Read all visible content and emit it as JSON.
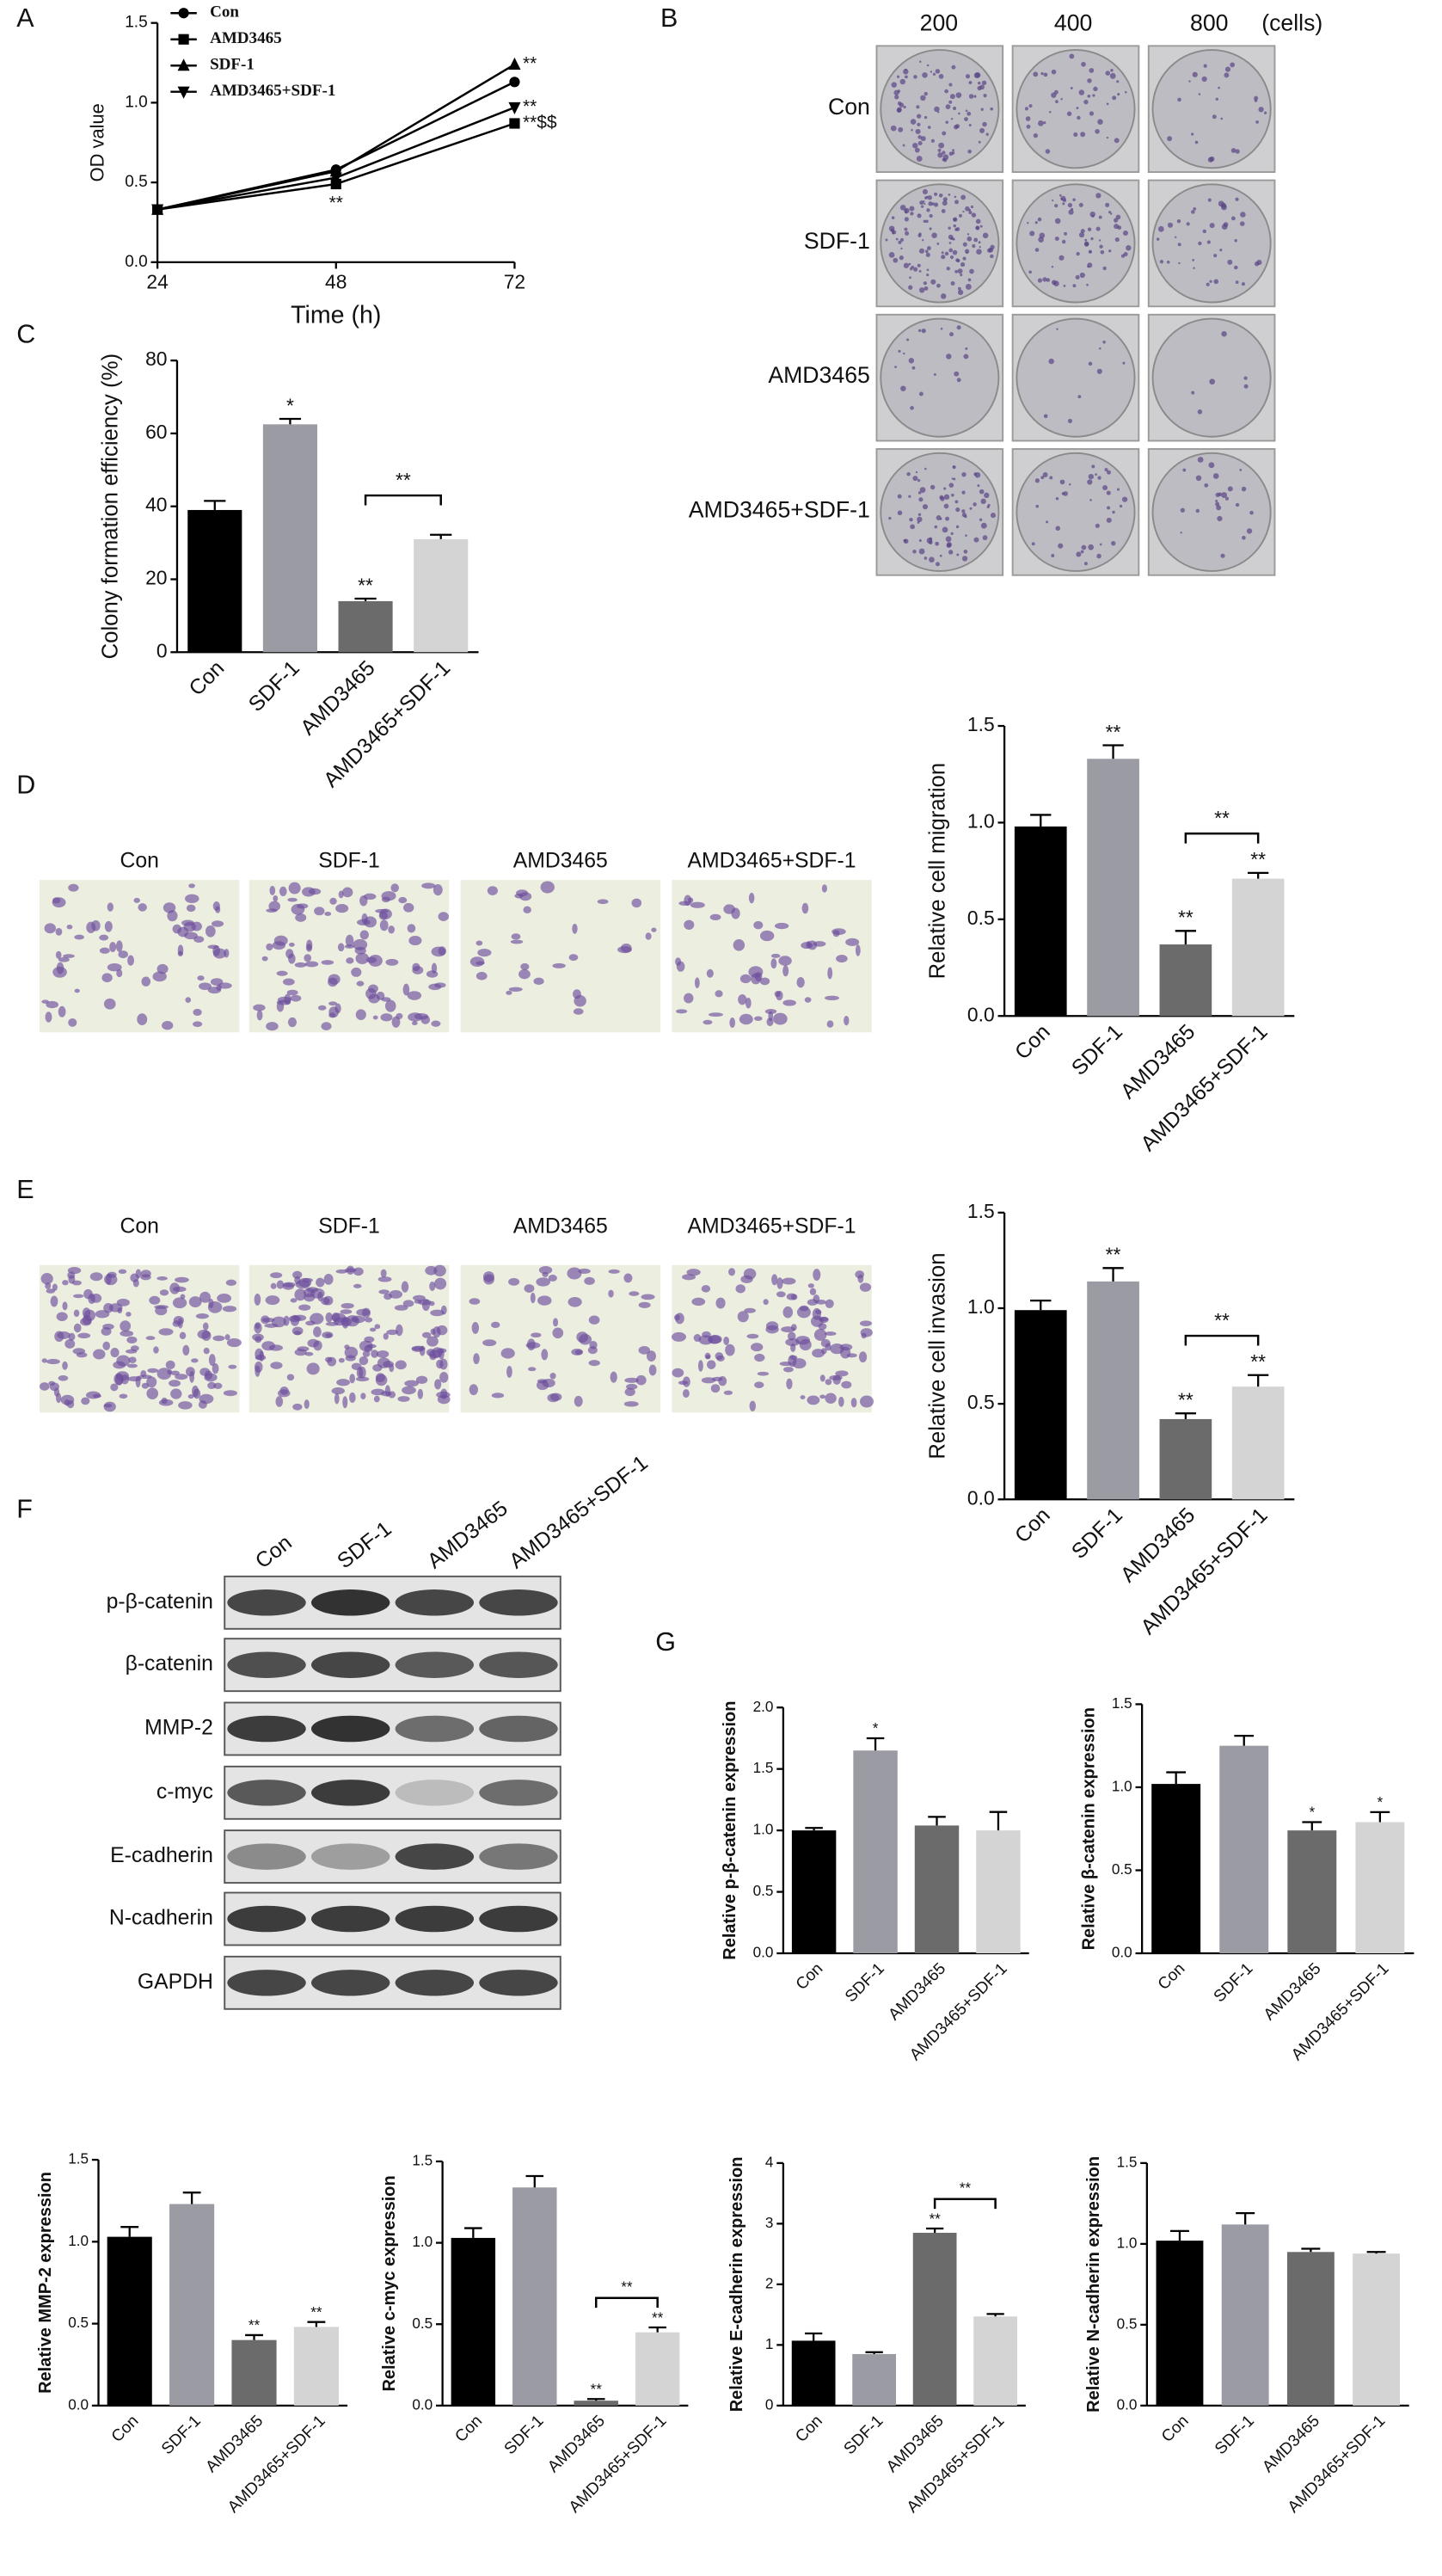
{
  "panel_labels": [
    "A",
    "B",
    "C",
    "D",
    "E",
    "F",
    "G"
  ],
  "colony_assay": {
    "columns": [
      "200",
      "400",
      "800"
    ],
    "unit": "(cells)",
    "rows": [
      "Con",
      "SDF-1",
      "AMD3465",
      "AMD3465+SDF-1"
    ]
  },
  "migration_images": {
    "labels": [
      "Con",
      "SDF-1",
      "AMD3465",
      "AMD3465+SDF-1"
    ]
  },
  "invasion_images": {
    "labels": [
      "Con",
      "SDF-1",
      "AMD3465",
      "AMD3465+SDF-1"
    ]
  },
  "western_blot": {
    "lanes": [
      "Con",
      "SDF-1",
      "AMD3465",
      "AMD3465+SDF-1"
    ],
    "proteins": [
      "p-β-catenin",
      "β-catenin",
      "MMP-2",
      "c-myc",
      "E-cadherin",
      "N-cadherin",
      "GAPDH"
    ]
  },
  "chart_data": [
    {
      "type": "line",
      "xlabel": "Time (h)",
      "ylabel": "OD value",
      "x": [
        24,
        48,
        72
      ],
      "xlim": [
        24,
        72
      ],
      "xticks": [
        24,
        48,
        72
      ],
      "ylim": [
        0,
        1.5
      ],
      "yticks": [
        {
          "value": 0,
          "label": "0.0"
        },
        {
          "value": 0.5,
          "label": "0.5"
        },
        {
          "value": 1,
          "label": "1.0"
        },
        {
          "value": 1.5,
          "label": "1.5"
        }
      ],
      "legend": "upper left",
      "series": [
        {
          "name": "Con",
          "color": "#000000",
          "marker": "circle",
          "values": [
            0.33,
            0.58,
            1.13
          ]
        },
        {
          "name": "AMD3465",
          "color": "#000000",
          "marker": "square",
          "values": [
            0.33,
            0.49,
            0.87
          ],
          "annotations": [
            null,
            "**",
            "**$$"
          ]
        },
        {
          "name": "SDF-1",
          "color": "#000000",
          "marker": "triangle-up",
          "values": [
            0.33,
            0.57,
            1.24
          ],
          "annotations": [
            null,
            null,
            "**"
          ]
        },
        {
          "name": "AMD3465+SDF-1",
          "color": "#000000",
          "marker": "triangle-down",
          "values": [
            0.33,
            0.53,
            0.97
          ],
          "annotations": [
            null,
            null,
            "**"
          ]
        }
      ]
    },
    {
      "type": "bar",
      "ylabel": "Colony formation efficiency (%)",
      "categories": [
        "Con",
        "SDF-1",
        "AMD3465",
        "AMD3465+SDF-1"
      ],
      "values": [
        39,
        62.5,
        14,
        31
      ],
      "errors": [
        2.5,
        1.5,
        0.7,
        1.2
      ],
      "colors": [
        "#000000",
        "#9b9ba3",
        "#6b6b6b",
        "#d4d4d4"
      ],
      "annotations": [
        null,
        "*",
        "**",
        null
      ],
      "bracket_label": "**",
      "ylim": [
        0,
        80
      ],
      "yticks": [
        0,
        20,
        40,
        60,
        80
      ]
    },
    {
      "type": "bar",
      "ylabel": "Relative cell migration",
      "categories": [
        "Con",
        "SDF-1",
        "AMD3465",
        "AMD3465+SDF-1"
      ],
      "values": [
        0.98,
        1.33,
        0.37,
        0.71
      ],
      "errors": [
        0.06,
        0.07,
        0.07,
        0.03
      ],
      "colors": [
        "#000000",
        "#9b9ba3",
        "#6b6b6b",
        "#d4d4d4"
      ],
      "annotations": [
        null,
        "**",
        "**",
        "**"
      ],
      "bracket_label": "**",
      "ylim": [
        0,
        1.5
      ],
      "yticks": [
        {
          "value": 0,
          "label": "0.0"
        },
        {
          "value": 0.5,
          "label": "0.5"
        },
        {
          "value": 1,
          "label": "1.0"
        },
        {
          "value": 1.5,
          "label": "1.5"
        }
      ]
    },
    {
      "type": "bar",
      "ylabel": "Relative cell invasion",
      "categories": [
        "Con",
        "SDF-1",
        "AMD3465",
        "AMD3465+SDF-1"
      ],
      "values": [
        0.99,
        1.14,
        0.42,
        0.59
      ],
      "errors": [
        0.05,
        0.07,
        0.03,
        0.06
      ],
      "colors": [
        "#000000",
        "#9b9ba3",
        "#6b6b6b",
        "#d4d4d4"
      ],
      "annotations": [
        null,
        "**",
        "**",
        "**"
      ],
      "bracket_label": "**",
      "ylim": [
        0,
        1.5
      ],
      "yticks": [
        {
          "value": 0,
          "label": "0.0"
        },
        {
          "value": 0.5,
          "label": "0.5"
        },
        {
          "value": 1,
          "label": "1.0"
        },
        {
          "value": 1.5,
          "label": "1.5"
        }
      ]
    },
    {
      "type": "bar",
      "ylabel": "Relative p-β-catenin expression",
      "categories": [
        "Con",
        "SDF-1",
        "AMD3465",
        "AMD3465+SDF-1"
      ],
      "values": [
        1.0,
        1.65,
        1.04,
        1.0
      ],
      "errors": [
        0.02,
        0.1,
        0.07,
        0.15
      ],
      "colors": [
        "#000000",
        "#9b9ba3",
        "#6b6b6b",
        "#d4d4d4"
      ],
      "annotations": [
        null,
        "*",
        null,
        null
      ],
      "ylim": [
        0,
        2
      ],
      "yticks": [
        {
          "value": 0,
          "label": "0.0"
        },
        {
          "value": 0.5,
          "label": "0.5"
        },
        {
          "value": 1,
          "label": "1.0"
        },
        {
          "value": 1.5,
          "label": "1.5"
        },
        {
          "value": 2,
          "label": "2.0"
        }
      ]
    },
    {
      "type": "bar",
      "ylabel": "Relative β-catenin expression",
      "categories": [
        "Con",
        "SDF-1",
        "AMD3465",
        "AMD3465+SDF-1"
      ],
      "values": [
        1.02,
        1.25,
        0.74,
        0.79
      ],
      "errors": [
        0.07,
        0.06,
        0.05,
        0.06
      ],
      "colors": [
        "#000000",
        "#9b9ba3",
        "#6b6b6b",
        "#d4d4d4"
      ],
      "annotations": [
        null,
        null,
        "*",
        "*"
      ],
      "ylim": [
        0,
        1.5
      ],
      "yticks": [
        {
          "value": 0,
          "label": "0.0"
        },
        {
          "value": 0.5,
          "label": "0.5"
        },
        {
          "value": 1,
          "label": "1.0"
        },
        {
          "value": 1.5,
          "label": "1.5"
        }
      ]
    },
    {
      "type": "bar",
      "ylabel": "Relative MMP-2 expression",
      "categories": [
        "Con",
        "SDF-1",
        "AMD3465",
        "AMD3465+SDF-1"
      ],
      "values": [
        1.03,
        1.23,
        0.4,
        0.48
      ],
      "errors": [
        0.06,
        0.07,
        0.03,
        0.03
      ],
      "colors": [
        "#000000",
        "#9b9ba3",
        "#6b6b6b",
        "#d4d4d4"
      ],
      "annotations": [
        null,
        null,
        "**",
        "**"
      ],
      "ylim": [
        0,
        1.5
      ],
      "yticks": [
        {
          "value": 0,
          "label": "0.0"
        },
        {
          "value": 0.5,
          "label": "0.5"
        },
        {
          "value": 1,
          "label": "1.0"
        },
        {
          "value": 1.5,
          "label": "1.5"
        }
      ]
    },
    {
      "type": "bar",
      "ylabel": "Relative c-myc expression",
      "categories": [
        "Con",
        "SDF-1",
        "AMD3465",
        "AMD3465+SDF-1"
      ],
      "values": [
        1.03,
        1.34,
        0.03,
        0.45
      ],
      "errors": [
        0.06,
        0.07,
        0.01,
        0.03
      ],
      "colors": [
        "#000000",
        "#9b9ba3",
        "#6b6b6b",
        "#d4d4d4"
      ],
      "annotations": [
        null,
        null,
        "**",
        "**"
      ],
      "bracket_label": "**",
      "ylim": [
        0,
        1.5
      ],
      "yticks": [
        {
          "value": 0,
          "label": "0.0"
        },
        {
          "value": 0.5,
          "label": "0.5"
        },
        {
          "value": 1,
          "label": "1.0"
        },
        {
          "value": 1.5,
          "label": "1.5"
        }
      ]
    },
    {
      "type": "bar",
      "ylabel": "Relative E-cadherin expression",
      "categories": [
        "Con",
        "SDF-1",
        "AMD3465",
        "AMD3465+SDF-1"
      ],
      "values": [
        1.07,
        0.85,
        2.85,
        1.47
      ],
      "errors": [
        0.12,
        0.03,
        0.07,
        0.04
      ],
      "colors": [
        "#000000",
        "#9b9ba3",
        "#6b6b6b",
        "#d4d4d4"
      ],
      "annotations": [
        null,
        null,
        "**",
        null
      ],
      "bracket_label": "**",
      "ylim": [
        0,
        4
      ],
      "yticks": [
        0,
        1,
        2,
        3,
        4
      ]
    },
    {
      "type": "bar",
      "ylabel": "Relative N-cadherin expression",
      "categories": [
        "Con",
        "SDF-1",
        "AMD3465",
        "AMD3465+SDF-1"
      ],
      "values": [
        1.02,
        1.12,
        0.95,
        0.94
      ],
      "errors": [
        0.06,
        0.07,
        0.02,
        0.01
      ],
      "colors": [
        "#000000",
        "#9b9ba3",
        "#6b6b6b",
        "#d4d4d4"
      ],
      "ylim": [
        0,
        1.5
      ],
      "yticks": [
        {
          "value": 0,
          "label": "0.0"
        },
        {
          "value": 0.5,
          "label": "0.5"
        },
        {
          "value": 1,
          "label": "1.0"
        },
        {
          "value": 1.5,
          "label": "1.5"
        }
      ]
    }
  ]
}
